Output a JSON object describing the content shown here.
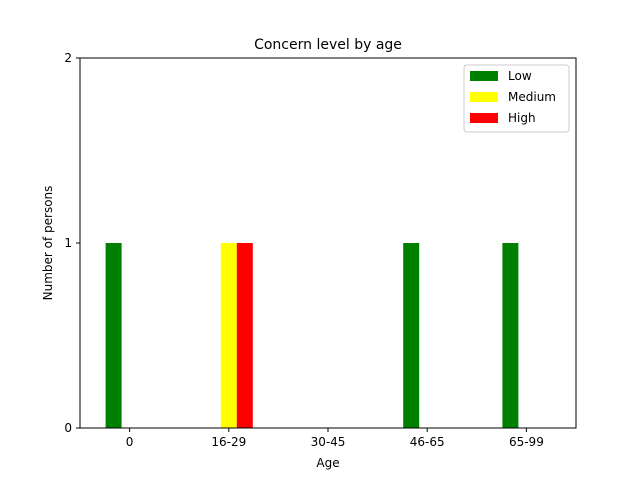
{
  "chart_data": {
    "type": "bar",
    "title": "Concern level by age",
    "xlabel": "Age",
    "ylabel": "Number of persons",
    "categories": [
      "0",
      "16-29",
      "30-45",
      "46-65",
      "65-99"
    ],
    "series": [
      {
        "name": "Low",
        "color": "#008000",
        "values": [
          1,
          0,
          0,
          1,
          1
        ]
      },
      {
        "name": "Medium",
        "color": "#ffff00",
        "values": [
          0,
          1,
          0,
          0,
          0
        ]
      },
      {
        "name": "High",
        "color": "#ff0000",
        "values": [
          0,
          1,
          0,
          0,
          0
        ]
      }
    ],
    "ylim": [
      0,
      2
    ],
    "yticks": [
      0,
      1,
      2
    ],
    "grid": false,
    "legend_position": "top-right"
  }
}
